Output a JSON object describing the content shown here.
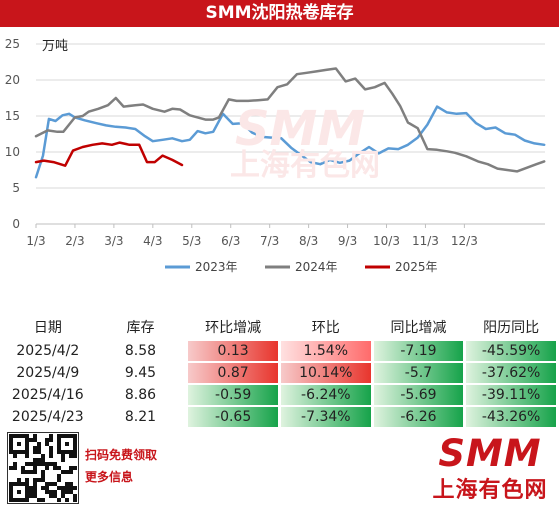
{
  "header": {
    "title": "SMM沈阳热卷库存"
  },
  "chart_data": {
    "type": "line",
    "unit_label": "万吨",
    "ylim": [
      0,
      25
    ],
    "yticks": [
      0,
      5,
      10,
      15,
      20,
      25
    ],
    "x_ticks": [
      "1/3",
      "2/3",
      "3/3",
      "4/3",
      "5/3",
      "6/3",
      "7/3",
      "8/3",
      "9/3",
      "10/3",
      "11/3",
      "12/3"
    ],
    "watermark": [
      "SMM",
      "上海有色网"
    ],
    "series": [
      {
        "name": "2023年",
        "color": "#5b9bd5",
        "x": [
          0.0,
          0.18,
          0.33,
          0.5,
          0.68,
          0.85,
          1.0,
          1.25,
          1.55,
          1.8,
          2.05,
          2.3,
          2.55,
          2.8,
          3.0,
          3.25,
          3.5,
          3.75,
          3.95,
          4.15,
          4.35,
          4.55,
          4.8,
          5.05,
          5.3,
          5.55,
          5.8,
          6.05,
          6.3,
          6.55,
          6.8,
          7.05,
          7.3,
          7.55,
          7.8,
          8.05,
          8.3,
          8.55,
          8.8,
          9.05,
          9.3,
          9.55,
          9.8,
          10.05,
          10.3,
          10.55,
          10.8,
          11.05,
          11.3,
          11.55,
          11.8,
          12.05,
          12.3,
          12.55,
          12.8,
          13.05
        ],
        "values": [
          6.5,
          9.5,
          14.6,
          14.3,
          15.1,
          15.3,
          14.8,
          14.4,
          14.0,
          13.7,
          13.5,
          13.4,
          13.2,
          12.2,
          11.5,
          11.7,
          11.9,
          11.5,
          11.7,
          12.9,
          12.6,
          12.8,
          15.3,
          13.9,
          14.0,
          12.7,
          12.1,
          12.0,
          11.9,
          10.6,
          9.6,
          8.6,
          8.3,
          8.9,
          8.5,
          8.8,
          9.8,
          10.7,
          9.8,
          10.5,
          10.4,
          11.0,
          12.0,
          13.8,
          16.3,
          15.5,
          15.3,
          15.4,
          14.0,
          13.2,
          13.4,
          12.6,
          12.4,
          11.6,
          11.2,
          11.0
        ]
      },
      {
        "name": "2024年",
        "color": "#7f7f7f",
        "x": [
          0.0,
          0.3,
          0.55,
          0.7,
          1.0,
          1.2,
          1.35,
          1.6,
          1.85,
          2.05,
          2.25,
          2.55,
          2.75,
          3.0,
          3.3,
          3.5,
          3.7,
          3.95,
          4.15,
          4.35,
          4.55,
          4.7,
          4.95,
          5.15,
          5.45,
          5.7,
          5.95,
          6.2,
          6.45,
          6.7,
          6.95,
          7.2,
          7.45,
          7.7,
          7.95,
          8.2,
          8.45,
          8.7,
          8.95,
          9.15,
          9.35,
          9.55,
          9.8,
          10.05,
          10.3,
          10.55,
          10.75,
          11.05,
          11.35,
          11.6,
          11.85,
          12.1,
          12.35,
          12.6,
          12.85,
          13.05
        ],
        "values": [
          12.2,
          13.0,
          12.8,
          12.8,
          14.8,
          15.0,
          15.6,
          16.0,
          16.5,
          17.5,
          16.3,
          16.5,
          16.6,
          16.0,
          15.6,
          16.0,
          15.9,
          15.1,
          14.8,
          14.5,
          14.5,
          14.8,
          17.3,
          17.1,
          17.1,
          17.2,
          17.3,
          19.0,
          19.4,
          20.8,
          21.0,
          21.2,
          21.4,
          21.6,
          19.8,
          20.2,
          18.7,
          19.0,
          19.6,
          18.1,
          16.4,
          14.1,
          13.3,
          10.4,
          10.3,
          10.1,
          9.9,
          9.4,
          8.7,
          8.3,
          7.7,
          7.5,
          7.3,
          7.8,
          8.3,
          8.7
        ],
        "x_resampled": true
      },
      {
        "name": "2025年",
        "color": "#c00000",
        "x": [
          0.0,
          0.2,
          0.45,
          0.75,
          0.95,
          1.2,
          1.45,
          1.7,
          1.95,
          2.15,
          2.4,
          2.65,
          2.85,
          3.05,
          3.25,
          3.5,
          3.75
        ],
        "values": [
          8.6,
          8.8,
          8.6,
          8.1,
          10.2,
          10.7,
          11.0,
          11.2,
          11.0,
          11.3,
          11.0,
          11.0,
          8.6,
          8.6,
          9.5,
          8.9,
          8.2
        ]
      }
    ]
  },
  "table": {
    "headers": [
      "日期",
      "库存",
      "环比增减",
      "环比",
      "同比增减",
      "阳历同比"
    ],
    "rows": [
      {
        "date": "2025/4/2",
        "stock": "8.58",
        "mom_diff": "0.13",
        "mom": "1.54%",
        "yoy_diff": "-7.19",
        "yoy": "-45.59%"
      },
      {
        "date": "2025/4/9",
        "stock": "9.45",
        "mom_diff": "0.87",
        "mom": "10.14%",
        "yoy_diff": "-5.7",
        "yoy": "-37.62%"
      },
      {
        "date": "2025/4/16",
        "stock": "8.86",
        "mom_diff": "-0.59",
        "mom": "-6.24%",
        "yoy_diff": "-5.69",
        "yoy": "-39.11%"
      },
      {
        "date": "2025/4/23",
        "stock": "8.21",
        "mom_diff": "-0.65",
        "mom": "-7.34%",
        "yoy_diff": "-6.26",
        "yoy": "-43.26%"
      }
    ]
  },
  "footer": {
    "scan_text": "扫码免费领取",
    "more_info": "更多信息",
    "brand": "SMM",
    "brand_sub": "上海有色网"
  }
}
